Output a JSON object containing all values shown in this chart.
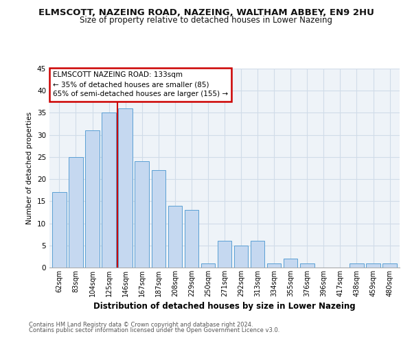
{
  "title": "ELMSCOTT, NAZEING ROAD, NAZEING, WALTHAM ABBEY, EN9 2HU",
  "subtitle": "Size of property relative to detached houses in Lower Nazeing",
  "xlabel": "Distribution of detached houses by size in Lower Nazeing",
  "ylabel": "Number of detached properties",
  "categories": [
    "62sqm",
    "83sqm",
    "104sqm",
    "125sqm",
    "146sqm",
    "167sqm",
    "187sqm",
    "208sqm",
    "229sqm",
    "250sqm",
    "271sqm",
    "292sqm",
    "313sqm",
    "334sqm",
    "355sqm",
    "376sqm",
    "396sqm",
    "417sqm",
    "438sqm",
    "459sqm",
    "480sqm"
  ],
  "values": [
    17,
    25,
    31,
    35,
    36,
    24,
    22,
    14,
    13,
    1,
    6,
    5,
    6,
    1,
    2,
    1,
    0,
    0,
    1,
    1,
    1
  ],
  "bar_color": "#c5d8f0",
  "bar_edge_color": "#5a9fd4",
  "vline_color": "#cc0000",
  "vline_x_pos": 3.5,
  "annotation_title": "ELMSCOTT NAZEING ROAD: 133sqm",
  "annotation_line2": "← 35% of detached houses are smaller (85)",
  "annotation_line3": "65% of semi-detached houses are larger (155) →",
  "annotation_box_color": "#cc0000",
  "annotation_bg": "#ffffff",
  "ylim": [
    0,
    45
  ],
  "yticks": [
    0,
    5,
    10,
    15,
    20,
    25,
    30,
    35,
    40,
    45
  ],
  "grid_color": "#d0dce8",
  "bg_color": "#eef3f8",
  "footnote1": "Contains HM Land Registry data © Crown copyright and database right 2024.",
  "footnote2": "Contains public sector information licensed under the Open Government Licence v3.0.",
  "title_fontsize": 9.5,
  "subtitle_fontsize": 8.5,
  "bar_width": 0.85
}
